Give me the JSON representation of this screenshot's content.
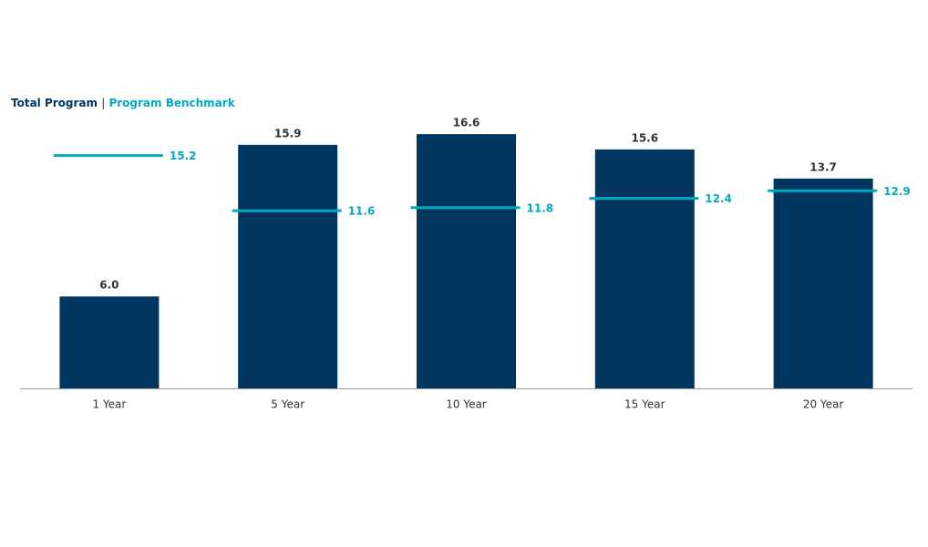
{
  "chart_data": {
    "type": "bar",
    "categories": [
      "1 Year",
      "5 Year",
      "10 Year",
      "15 Year",
      "20 Year"
    ],
    "legend_separator": "|",
    "series": [
      {
        "name": "Total Program",
        "type": "bar",
        "color": "#003660",
        "values": [
          6.0,
          15.9,
          16.6,
          15.6,
          13.7
        ],
        "value_labels": [
          "6.0",
          "15.9",
          "16.6",
          "15.6",
          "13.7"
        ]
      },
      {
        "name": "Program Benchmark",
        "type": "benchmark",
        "color": "#00a9c0",
        "values": [
          15.2,
          11.6,
          11.8,
          12.4,
          12.9
        ]
      }
    ]
  }
}
